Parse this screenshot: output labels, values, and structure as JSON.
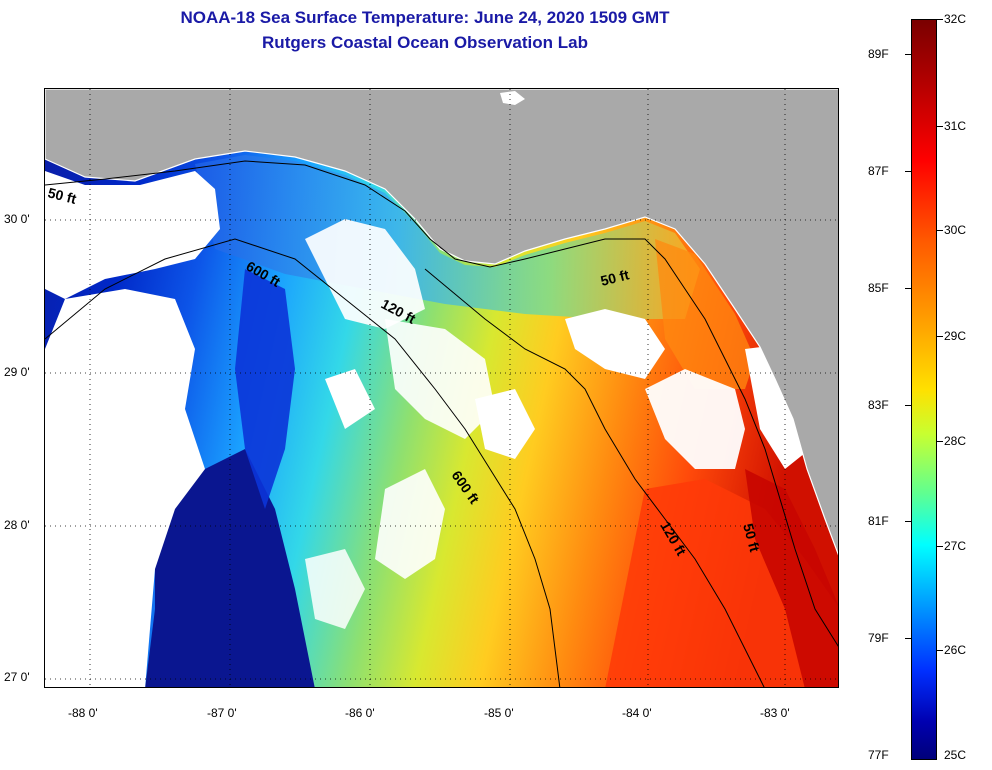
{
  "title": {
    "line1": "NOAA-18 Sea Surface Temperature:  June 24, 2020 1509 GMT",
    "line2": "Rutgers Coastal Ocean Observation Lab"
  },
  "map": {
    "latitude_labels": [
      "30 0'",
      "29 0'",
      "28 0'",
      "27 0'"
    ],
    "longitude_labels": [
      "-88 0'",
      "-87 0'",
      "-86 0'",
      "-85 0'",
      "-84 0'",
      "-83 0'"
    ],
    "contour_labels": {
      "c50_west": "50 ft",
      "c600_north": "600 ft",
      "c120_north": "120 ft",
      "c50_east": "50 ft",
      "c600_south": "600 ft",
      "c120_south": "120 ft",
      "c50_south": "50 ft"
    },
    "colors": {
      "land": "#a9a9a9",
      "cloud": "#ffffff"
    }
  },
  "colorbar": {
    "celsius": [
      "32C",
      "31C",
      "30C",
      "29C",
      "28C",
      "27C",
      "26C",
      "25C"
    ],
    "fahrenheit": [
      "89F",
      "87F",
      "85F",
      "83F",
      "81F",
      "79F",
      "77F"
    ]
  }
}
